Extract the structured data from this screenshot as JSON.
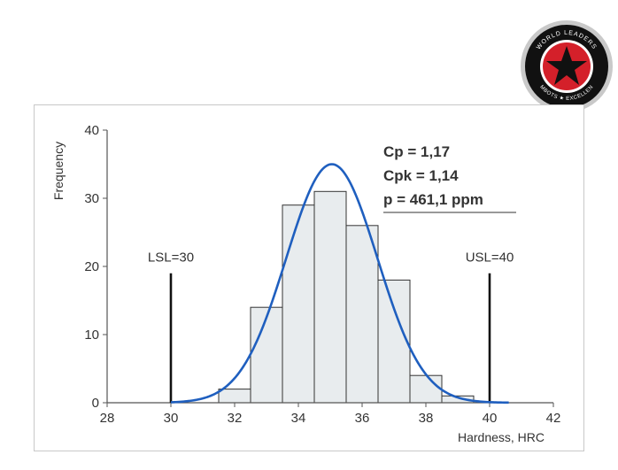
{
  "logo": {
    "text_top": "WORLD LEADERS",
    "text_bottom": "MBOTS ★ EXCELLEN",
    "colors": {
      "ring": "#c9c9c9",
      "outer": "#111111",
      "inner": "#d4202a",
      "star": "#111111"
    }
  },
  "chart_data": {
    "type": "bar",
    "title": "",
    "xlabel": "Hardness, HRC",
    "ylabel": "Frequency",
    "xlim": [
      28,
      42
    ],
    "ylim": [
      0,
      40
    ],
    "x_ticks": [
      28,
      30,
      32,
      34,
      36,
      38,
      40,
      42
    ],
    "y_ticks": [
      0,
      10,
      20,
      30,
      40
    ],
    "grid": false,
    "bins": [
      {
        "start": 31.5,
        "end": 32.5,
        "count": 2
      },
      {
        "start": 32.5,
        "end": 33.5,
        "count": 14
      },
      {
        "start": 33.5,
        "end": 34.5,
        "count": 29
      },
      {
        "start": 34.5,
        "end": 35.5,
        "count": 31
      },
      {
        "start": 35.5,
        "end": 36.5,
        "count": 26
      },
      {
        "start": 36.5,
        "end": 37.5,
        "count": 18
      },
      {
        "start": 37.5,
        "end": 38.5,
        "count": 4
      },
      {
        "start": 38.5,
        "end": 39.5,
        "count": 1
      }
    ],
    "curve": {
      "type": "normal",
      "mean": 35.05,
      "peak": 35,
      "sd": 1.43,
      "color": "#1f5fbf"
    },
    "spec_limits": [
      {
        "label": "LSL=30",
        "value": 30,
        "height": 19
      },
      {
        "label": "USL=40",
        "value": 40,
        "height": 19
      }
    ],
    "annotations": [
      "Cp = 1,17",
      "Cpk = 1,14",
      "p = 461,1 ppm"
    ],
    "colors": {
      "bar_fill": "#e8ecee",
      "bar_stroke": "#333333",
      "axis": "#555555",
      "text": "#333333"
    }
  }
}
